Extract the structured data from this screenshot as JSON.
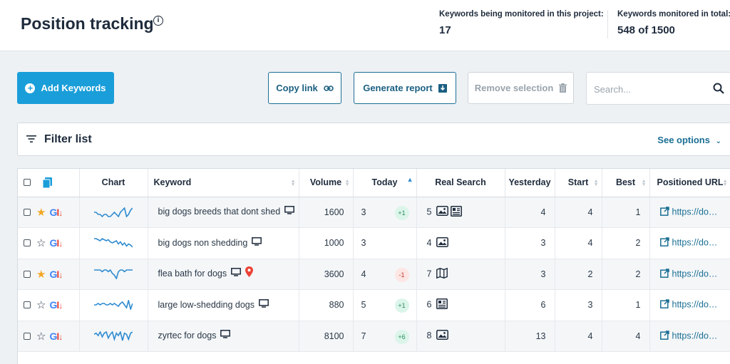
{
  "header": {
    "title": "Position tracking",
    "info_icon": "info-icon",
    "stats": [
      {
        "label": "Keywords being monitored in this project:",
        "value": "17"
      },
      {
        "label": "Keywords monitored in total:",
        "value": "548 of 1500"
      }
    ]
  },
  "toolbar": {
    "add_keywords": "Add Keywords",
    "copy_link": "Copy link",
    "generate_report": "Generate report",
    "remove_selection": "Remove selection",
    "search_placeholder": "Search..."
  },
  "filter": {
    "title": "Filter list",
    "see_options": "See options"
  },
  "table": {
    "columns": [
      "Chart",
      "Keyword",
      "Volume",
      "Today",
      "Real Search",
      "Yesterday",
      "Start",
      "Best",
      "Positioned URL"
    ],
    "rows": [
      {
        "starred": true,
        "keyword": "big dogs breeds that dont shed",
        "device_icon": "desktop-icon",
        "location_icon": "",
        "volume": "1600",
        "today": "3",
        "delta": "+1",
        "delta_dir": "up",
        "real_search": "5",
        "rs_icons": [
          "image-icon",
          "news-icon"
        ],
        "yesterday": "4",
        "start": "4",
        "best": "1",
        "url": "https://do…",
        "spark": [
          5,
          5,
          6,
          6,
          7,
          6,
          6,
          7,
          7,
          6,
          5,
          6,
          7,
          5,
          4,
          3,
          7,
          6,
          4,
          3
        ]
      },
      {
        "starred": false,
        "keyword": "big dogs non shedding",
        "device_icon": "desktop-icon",
        "location_icon": "",
        "volume": "1000",
        "today": "3",
        "delta": "",
        "delta_dir": "",
        "real_search": "4",
        "rs_icons": [
          "image-icon"
        ],
        "yesterday": "3",
        "start": "4",
        "best": "2",
        "url": "https://do…",
        "spark": [
          3,
          3,
          4,
          5,
          3,
          4,
          5,
          4,
          6,
          7,
          6,
          5,
          8,
          6,
          9,
          7,
          10,
          8,
          9,
          11
        ]
      },
      {
        "starred": true,
        "keyword": "flea bath for dogs",
        "device_icon": "desktop-icon",
        "location_icon": "pin-icon",
        "volume": "3600",
        "today": "4",
        "delta": "-1",
        "delta_dir": "down",
        "real_search": "7",
        "rs_icons": [
          "map-icon"
        ],
        "yesterday": "3",
        "start": "2",
        "best": "2",
        "url": "https://do…",
        "spark": [
          3,
          3,
          3,
          3,
          4,
          3,
          3,
          4,
          3,
          5,
          6,
          8,
          4,
          3,
          3,
          4,
          3,
          3,
          3,
          3
        ]
      },
      {
        "starred": false,
        "keyword": "large low-shedding dogs",
        "device_icon": "desktop-icon",
        "location_icon": "",
        "volume": "880",
        "today": "5",
        "delta": "+1",
        "delta_dir": "up",
        "real_search": "6",
        "rs_icons": [
          "news-icon"
        ],
        "yesterday": "6",
        "start": "3",
        "best": "1",
        "url": "https://do…",
        "spark": [
          7,
          7,
          6,
          7,
          6,
          6,
          7,
          7,
          6,
          7,
          6,
          7,
          8,
          6,
          5,
          7,
          9,
          4,
          10,
          6
        ]
      },
      {
        "starred": false,
        "keyword": "zyrtec for dogs",
        "device_icon": "desktop-icon",
        "location_icon": "",
        "volume": "8100",
        "today": "7",
        "delta": "+6",
        "delta_dir": "up",
        "real_search": "8",
        "rs_icons": [
          "image-icon"
        ],
        "yesterday": "13",
        "start": "4",
        "best": "4",
        "url": "https://do…",
        "spark": [
          5,
          4,
          6,
          3,
          7,
          4,
          3,
          8,
          5,
          3,
          9,
          4,
          6,
          3,
          10,
          4,
          5,
          9,
          4,
          3
        ]
      }
    ]
  },
  "colors": {
    "accent": "#1a9ed9",
    "outline": "#1b6f94",
    "star": "#f5a623",
    "spark": "#2e8bd0"
  }
}
